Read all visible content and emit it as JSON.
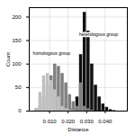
{
  "chart_data": {
    "type": "histogram",
    "xlabel": "Distance",
    "ylabel": "Count",
    "bins": [
      0,
      0.002,
      0.004,
      0.006,
      0.008,
      0.01,
      0.012,
      0.014,
      0.016,
      0.018,
      0.02,
      0.022,
      0.024,
      0.026,
      0.028,
      0.03,
      0.032,
      0.034,
      0.036,
      0.038,
      0.04,
      0.042,
      0.044,
      0.046,
      0.048,
      0.05,
      0.052
    ],
    "series": [
      {
        "color": "#111111",
        "values": [
          0,
          0,
          0,
          0,
          0,
          0,
          0,
          0,
          0,
          0,
          0,
          5,
          30,
          120,
          210,
          170,
          100,
          55,
          30,
          15,
          8,
          3,
          1,
          0,
          0,
          0
        ]
      },
      {
        "color": "#808080",
        "values": [
          0,
          5,
          10,
          30,
          55,
          75,
          100,
          95,
          80,
          60,
          35,
          20,
          10,
          60,
          10,
          5,
          2,
          0,
          0,
          0,
          0,
          0,
          0,
          0,
          0,
          0
        ]
      },
      {
        "color": "#c0c0c0",
        "values": [
          0,
          5,
          40,
          75,
          80,
          65,
          45,
          30,
          10,
          5,
          2,
          1,
          0,
          0,
          0,
          0,
          0,
          0,
          0,
          0,
          0,
          0,
          0,
          0,
          0,
          0
        ]
      }
    ],
    "xlim": [
      -0.001,
      0.052
    ],
    "ylim": [
      0,
      220
    ],
    "xticks": [
      {
        "value": 0.01,
        "label": "0.010"
      },
      {
        "value": 0.02,
        "label": "0.020"
      },
      {
        "value": 0.03,
        "label": "0.030"
      },
      {
        "value": 0.04,
        "label": "0.040"
      }
    ],
    "yticks": [
      0,
      50,
      100,
      150,
      200
    ],
    "grid": true,
    "annotations": [
      {
        "text": "homologous group",
        "x": 0.001,
        "y": 120
      },
      {
        "text": "heterologous group",
        "x": 0.026,
        "y": 160
      }
    ]
  }
}
